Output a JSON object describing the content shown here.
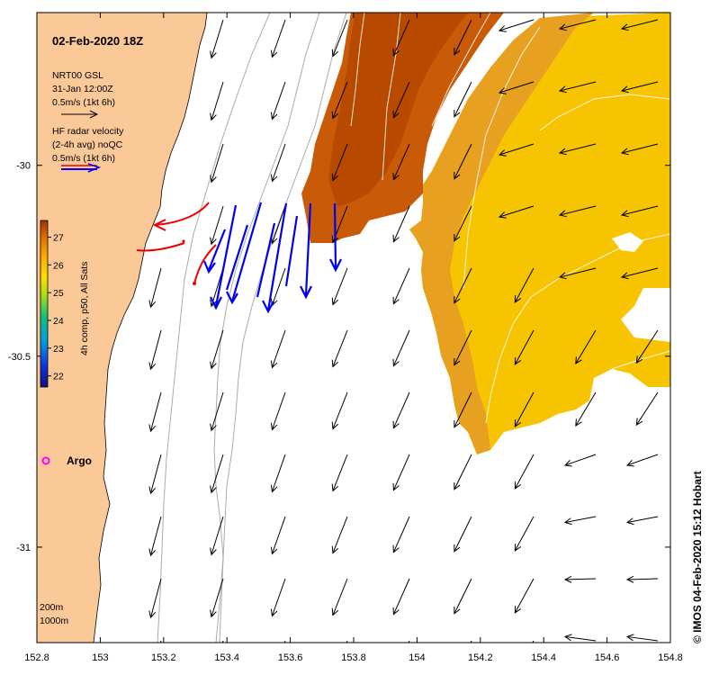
{
  "map": {
    "title": "02-Feb-2020 18Z",
    "lon_range": [
      152.8,
      154.8
    ],
    "lat_range": [
      -31.25,
      -29.6
    ],
    "x_ticks": [
      "152.8",
      "153",
      "153.2",
      "153.4",
      "153.6",
      "153.8",
      "154",
      "154.2",
      "154.4",
      "154.6",
      "154.8"
    ],
    "y_ticks": [
      "-30",
      "-30.5",
      "-31"
    ],
    "credit": "© IMOS 04-Feb-2020 15:12 Hobart"
  },
  "legend": {
    "gsl_title": "NRT00 GSL",
    "gsl_date": "31-Jan 12:00Z",
    "gsl_scale": "0.5m/s (1kt 6h)",
    "hf_title": "HF radar velocity",
    "hf_avg": "(2-4h avg) noQC",
    "hf_scale": "0.5m/s (1kt 6h)",
    "argo_label": "Argo",
    "isobath_200": "200m",
    "isobath_1000": "1000m"
  },
  "colorbar": {
    "label": "4h comp, p50, All Sats",
    "ticks": [
      "27",
      "26",
      "25",
      "24",
      "23",
      "22"
    ],
    "range": [
      21.6,
      27.6
    ]
  },
  "colors": {
    "land": "#FBC898",
    "gsl_arrow": "#000000",
    "hf_arrow": "#0000EE",
    "drifter": "#EE0000",
    "argo": "#FF00FF",
    "isobath": "#AAAAAA",
    "sst_warm": "#F5C000",
    "sst_hot": "#C85A00"
  }
}
